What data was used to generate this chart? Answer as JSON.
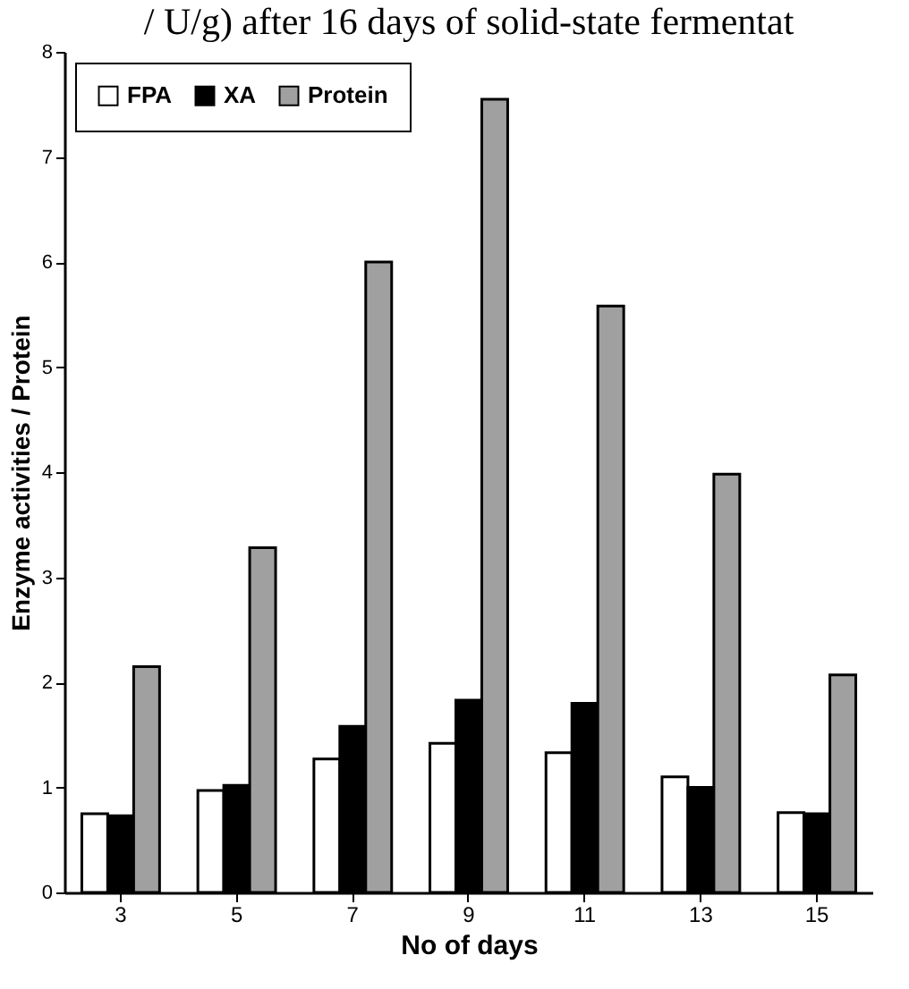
{
  "chart_data": {
    "type": "bar",
    "title": "/ U/g) after 16 days of solid-state fermentat",
    "xlabel": "No of days",
    "ylabel": "Enzyme activities / Protein",
    "categories": [
      "3",
      "5",
      "7",
      "9",
      "11",
      "13",
      "15"
    ],
    "series": [
      {
        "name": "FPA",
        "color": "#ffffff",
        "values": [
          0.75,
          0.97,
          1.27,
          1.42,
          1.33,
          1.1,
          0.76
        ]
      },
      {
        "name": "XA",
        "color": "#000000",
        "values": [
          0.73,
          1.02,
          1.58,
          1.83,
          1.8,
          1.0,
          0.75
        ]
      },
      {
        "name": "Protein",
        "color": "#a0a0a0",
        "values": [
          2.15,
          3.28,
          6.0,
          7.55,
          5.58,
          3.98,
          2.07
        ]
      }
    ],
    "ylim": [
      0,
      8
    ],
    "yticks": [
      0,
      1,
      2,
      3,
      4,
      5,
      6,
      7,
      8
    ],
    "legend": "top left",
    "grid": false
  }
}
